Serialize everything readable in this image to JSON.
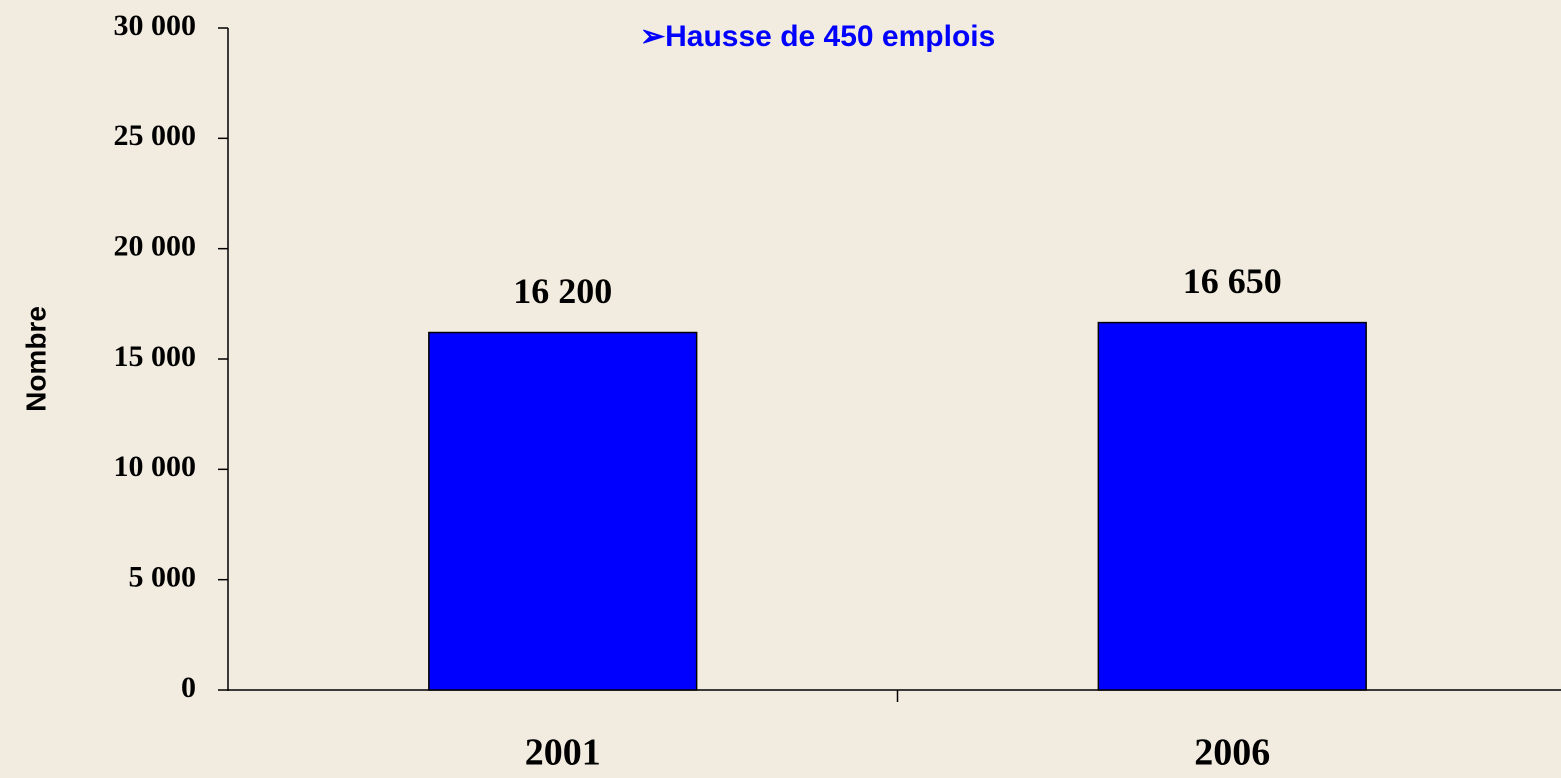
{
  "chart_data": {
    "type": "bar",
    "annotation": "➢Hausse de 450 emplois",
    "ylabel": "Nombre",
    "categories": [
      "2001",
      "2006"
    ],
    "values": [
      16200,
      16650
    ],
    "value_labels": [
      "16 200",
      "16 650"
    ],
    "color": "#0000ff",
    "ylim": [
      0,
      30000
    ],
    "yticks": [
      0,
      {
        "value": 5000,
        "label": "5 000"
      },
      {
        "value": 10000,
        "label": "10 000"
      },
      {
        "value": 15000,
        "label": "15 000"
      },
      {
        "value": 20000,
        "label": "20 000"
      },
      {
        "value": 25000,
        "label": "25 000"
      },
      {
        "value": 30000,
        "label": "30 000"
      }
    ],
    "grid": false
  }
}
